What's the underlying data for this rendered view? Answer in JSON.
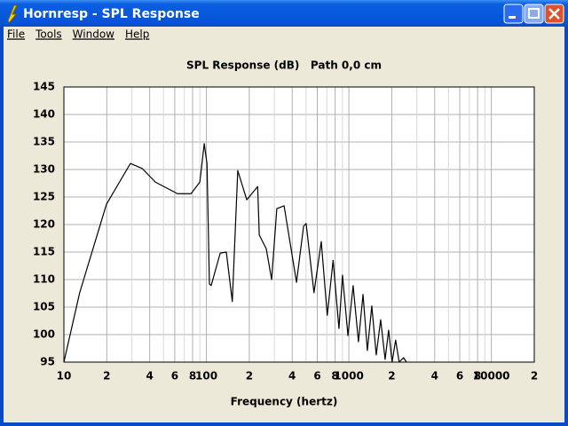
{
  "window": {
    "title": "Hornresp - SPL Response"
  },
  "menu": [
    "File",
    "Tools",
    "Window",
    "Help"
  ],
  "chart_data": {
    "type": "line",
    "title": "SPL Response (dB)   Path 0,0 cm",
    "x_label": "Frequency (hertz)",
    "log_x": true,
    "grid": true,
    "color": "#000000",
    "xlim": [
      10,
      20000
    ],
    "ylim": [
      95,
      145
    ],
    "xticks": [
      10,
      {
        "value": 20,
        "label": "2"
      },
      {
        "value": 40,
        "label": "4"
      },
      {
        "value": 60,
        "label": "6"
      },
      {
        "value": 80,
        "label": "8"
      },
      100,
      {
        "value": 200,
        "label": "2"
      },
      {
        "value": 400,
        "label": "4"
      },
      {
        "value": 600,
        "label": "6"
      },
      {
        "value": 800,
        "label": "8"
      },
      1000,
      {
        "value": 2000,
        "label": "2"
      },
      {
        "value": 4000,
        "label": "4"
      },
      {
        "value": 6000,
        "label": "6"
      },
      {
        "value": 8000,
        "label": "8"
      },
      10000,
      {
        "value": 20000,
        "label": "2"
      }
    ],
    "x_minor_grid": [
      30,
      50,
      70,
      90,
      300,
      500,
      700,
      900,
      3000,
      5000,
      7000,
      9000
    ],
    "yticks": [
      95,
      100,
      105,
      110,
      115,
      120,
      125,
      130,
      135,
      140,
      145
    ],
    "x": [
      10,
      12.9,
      19.9,
      29.3,
      35.4,
      43.9,
      62.7,
      78,
      89.9,
      96.6,
      101,
      105,
      108,
      125,
      138,
      152,
      166,
      192,
      229,
      235,
      263,
      287,
      312,
      351,
      429,
      481,
      501,
      569,
      640,
      705,
      775,
      852,
      902,
      985,
      1071,
      1167,
      1257,
      1348,
      1448,
      1556,
      1671,
      1796,
      1901,
      2010,
      2128,
      2253,
      2420,
      2535
    ],
    "values": [
      95,
      107.6,
      123.7,
      131.1,
      130.2,
      127.7,
      125.6,
      125.6,
      127.7,
      134.7,
      131,
      109.2,
      108.9,
      114.8,
      115,
      106,
      129.8,
      124.5,
      126.9,
      118.1,
      115.6,
      110,
      122.9,
      123.4,
      109.5,
      119.7,
      120.2,
      107.6,
      116.9,
      103.5,
      113.5,
      101.1,
      110.8,
      99.8,
      108.9,
      98.7,
      107.3,
      97.1,
      105.2,
      96.3,
      102.7,
      95.5,
      100.8,
      95,
      99,
      95,
      95.8,
      95
    ]
  }
}
